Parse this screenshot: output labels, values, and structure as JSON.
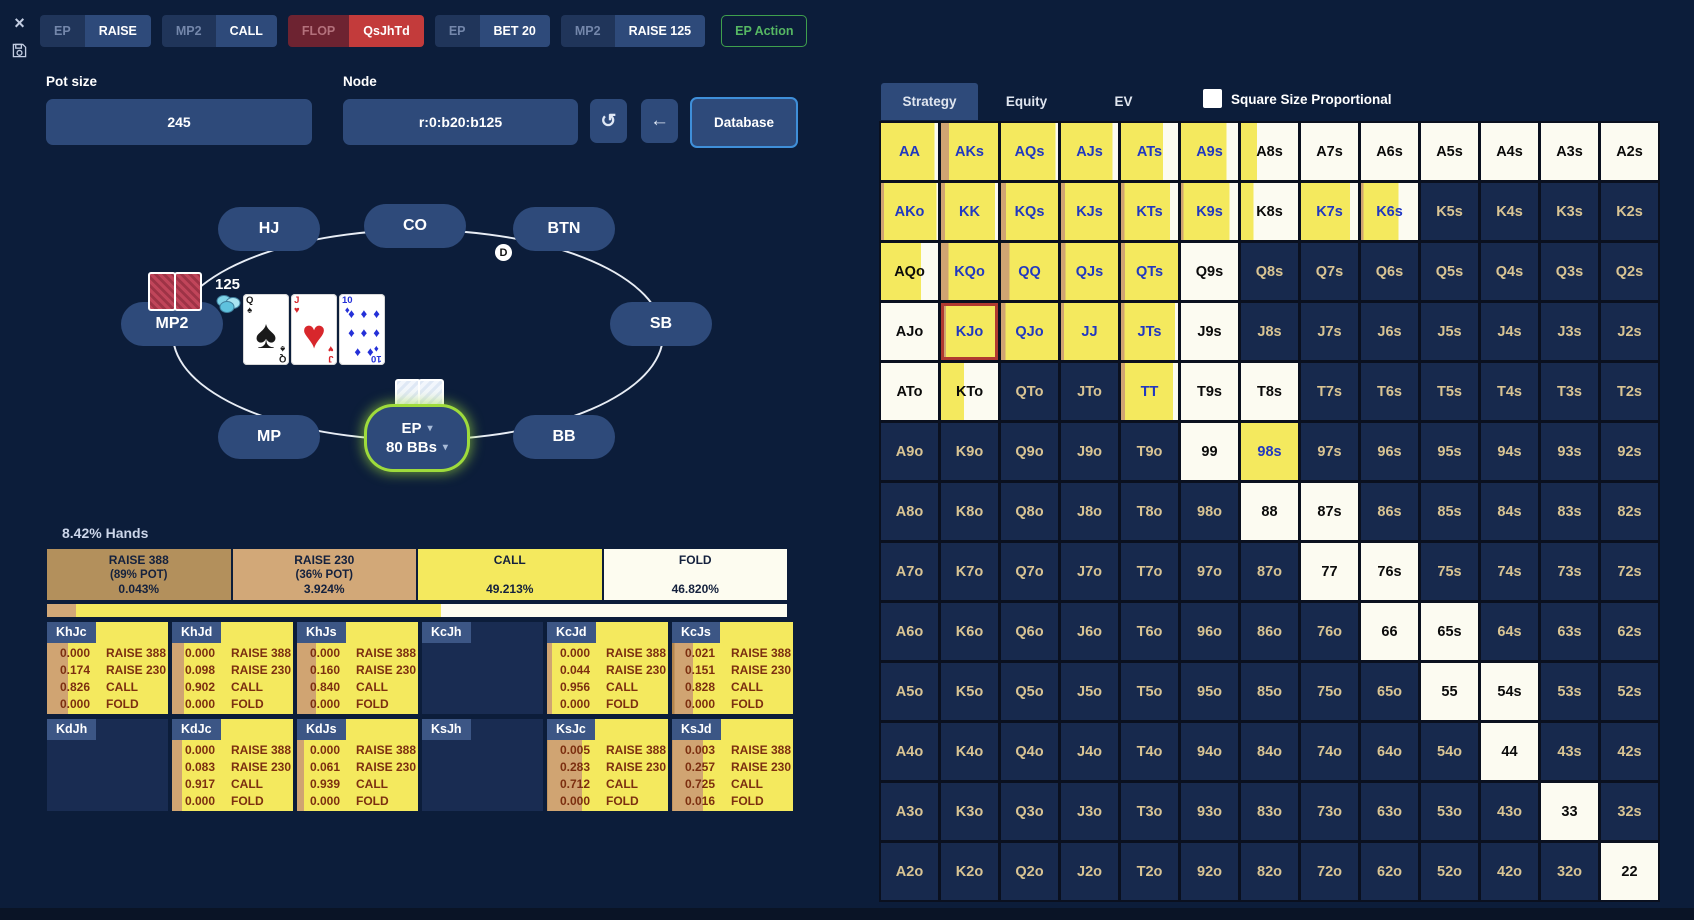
{
  "top_bar": {
    "groups": [
      {
        "position": "EP",
        "action": "RAISE",
        "board": false
      },
      {
        "position": "MP2",
        "action": "CALL",
        "board": false
      },
      {
        "position": "FLOP",
        "action": "QsJhTd",
        "board": true
      },
      {
        "position": "EP",
        "action": "BET 20",
        "board": false
      },
      {
        "position": "MP2",
        "action": "RAISE 125",
        "board": false
      }
    ],
    "ep_action_label": "EP Action"
  },
  "controls": {
    "pot_size_label": "Pot size",
    "pot_size_value": "245",
    "node_label": "Node",
    "node_value": "r:0:b20:b125",
    "database_label": "Database"
  },
  "table": {
    "seats": [
      "HJ",
      "CO",
      "BTN",
      "SB",
      "BB",
      "MP",
      "MP2"
    ],
    "hero": {
      "label": "EP",
      "stack": "80 BBs"
    },
    "bet_amount": "125",
    "dealer_label": "D",
    "board": [
      {
        "rank": "Q",
        "suit_glyph": "♠",
        "color": "#1a1a1a",
        "pips": 1
      },
      {
        "rank": "J",
        "suit_glyph": "♥",
        "color": "#d8272c",
        "pips": 1
      },
      {
        "rank": "10",
        "suit_glyph": "♦",
        "color": "#2430d8",
        "pips": 8
      }
    ]
  },
  "strategy_panel": {
    "hands_label": "8.42% Hands",
    "actions": [
      {
        "label": "RAISE 388",
        "pot": "(89% POT)",
        "pct": "0.043%",
        "freq": 0.043,
        "color": "#b3905c"
      },
      {
        "label": "RAISE 230",
        "pot": "(36% POT)",
        "pct": "3.924%",
        "freq": 3.924,
        "color": "#d2a878"
      },
      {
        "label": "CALL",
        "pot": "",
        "pct": "49.213%",
        "freq": 49.213,
        "color": "#f4e95e"
      },
      {
        "label": "FOLD",
        "pot": "",
        "pct": "46.820%",
        "freq": 46.82,
        "color": "#fdfcf0"
      }
    ],
    "combos": [
      {
        "name": "KhJc",
        "rows": [
          [
            "0.000",
            "RAISE 388"
          ],
          [
            "0.174",
            "RAISE 230"
          ],
          [
            "0.826",
            "CALL"
          ],
          [
            "0.000",
            "FOLD"
          ]
        ]
      },
      {
        "name": "KhJd",
        "rows": [
          [
            "0.000",
            "RAISE 388"
          ],
          [
            "0.098",
            "RAISE 230"
          ],
          [
            "0.902",
            "CALL"
          ],
          [
            "0.000",
            "FOLD"
          ]
        ]
      },
      {
        "name": "KhJs",
        "rows": [
          [
            "0.000",
            "RAISE 388"
          ],
          [
            "0.160",
            "RAISE 230"
          ],
          [
            "0.840",
            "CALL"
          ],
          [
            "0.000",
            "FOLD"
          ]
        ]
      },
      {
        "name": "KcJh",
        "rows": []
      },
      {
        "name": "KcJd",
        "rows": [
          [
            "0.000",
            "RAISE 388"
          ],
          [
            "0.044",
            "RAISE 230"
          ],
          [
            "0.956",
            "CALL"
          ],
          [
            "0.000",
            "FOLD"
          ]
        ]
      },
      {
        "name": "KcJs",
        "rows": [
          [
            "0.021",
            "RAISE 388"
          ],
          [
            "0.151",
            "RAISE 230"
          ],
          [
            "0.828",
            "CALL"
          ],
          [
            "0.000",
            "FOLD"
          ]
        ]
      },
      {
        "name": "KdJh",
        "rows": []
      },
      {
        "name": "KdJc",
        "rows": [
          [
            "0.000",
            "RAISE 388"
          ],
          [
            "0.083",
            "RAISE 230"
          ],
          [
            "0.917",
            "CALL"
          ],
          [
            "0.000",
            "FOLD"
          ]
        ]
      },
      {
        "name": "KdJs",
        "rows": [
          [
            "0.000",
            "RAISE 388"
          ],
          [
            "0.061",
            "RAISE 230"
          ],
          [
            "0.939",
            "CALL"
          ],
          [
            "0.000",
            "FOLD"
          ]
        ]
      },
      {
        "name": "KsJh",
        "rows": []
      },
      {
        "name": "KsJc",
        "rows": [
          [
            "0.005",
            "RAISE 388"
          ],
          [
            "0.283",
            "RAISE 230"
          ],
          [
            "0.712",
            "CALL"
          ],
          [
            "0.000",
            "FOLD"
          ]
        ]
      },
      {
        "name": "KsJd",
        "rows": [
          [
            "0.003",
            "RAISE 388"
          ],
          [
            "0.257",
            "RAISE 230"
          ],
          [
            "0.725",
            "CALL"
          ],
          [
            "0.016",
            "FOLD"
          ]
        ]
      }
    ]
  },
  "matrix": {
    "tabs": [
      "Strategy",
      "Equity",
      "EV"
    ],
    "active_tab": "Strategy",
    "checkbox_label": "Square Size Proportional",
    "colors": {
      "raise388": "#b2854d",
      "raise230": "#d0a472",
      "call": "#f4e95e",
      "fold": "#fcfbf1"
    },
    "selected_hand": "KJo",
    "cells": [
      [
        "AA",
        "s",
        "b",
        [
          0,
          0,
          0.94
        ]
      ],
      [
        "AKs",
        "s",
        "b",
        [
          0,
          0.14,
          0.86
        ]
      ],
      [
        "AQs",
        "s",
        "b",
        [
          0,
          0,
          0.96
        ]
      ],
      [
        "AJs",
        "s",
        "b",
        [
          0,
          0,
          0.9
        ]
      ],
      [
        "ATs",
        "s",
        "b",
        [
          0,
          0,
          0.74
        ]
      ],
      [
        "A9s",
        "s",
        "b",
        [
          0,
          0,
          0.8
        ]
      ],
      [
        "A8s",
        "s",
        "k",
        [
          0,
          0,
          0.28
        ]
      ],
      [
        "A7s",
        "f"
      ],
      [
        "A6s",
        "f"
      ],
      [
        "A5s",
        "f"
      ],
      [
        "A4s",
        "f"
      ],
      [
        "A3s",
        "f"
      ],
      [
        "A2s",
        "f"
      ],
      [
        "AKo",
        "s",
        "b",
        [
          0,
          0.05,
          0.92
        ]
      ],
      [
        "KK",
        "s",
        "b",
        [
          0,
          0.07,
          0.88
        ]
      ],
      [
        "KQs",
        "s",
        "b",
        [
          0,
          0.09,
          0.91
        ]
      ],
      [
        "KJs",
        "s",
        "b",
        [
          0,
          0.07,
          0.93
        ]
      ],
      [
        "KTs",
        "s",
        "b",
        [
          0,
          0.06,
          0.8
        ]
      ],
      [
        "K9s",
        "s",
        "b",
        [
          0,
          0.04,
          0.81
        ]
      ],
      [
        "K8s",
        "s",
        "k",
        [
          0,
          0,
          0.22
        ]
      ],
      [
        "K7s",
        "s",
        "b",
        [
          0,
          0,
          0.86
        ]
      ],
      [
        "K6s",
        "s",
        "b",
        [
          0,
          0.04,
          0.62
        ]
      ],
      [
        "K5s",
        "n"
      ],
      [
        "K4s",
        "n"
      ],
      [
        "K3s",
        "n"
      ],
      [
        "K2s",
        "n"
      ],
      [
        "AQo",
        "s",
        "k",
        [
          0,
          0,
          0.7
        ]
      ],
      [
        "KQo",
        "s",
        "b",
        [
          0,
          0.13,
          0.87
        ]
      ],
      [
        "QQ",
        "s",
        "b",
        [
          0,
          0.15,
          0.85
        ]
      ],
      [
        "QJs",
        "s",
        "b",
        [
          0,
          0.08,
          0.92
        ]
      ],
      [
        "QTs",
        "s",
        "b",
        [
          0,
          0.07,
          0.93
        ]
      ],
      [
        "Q9s",
        "f"
      ],
      [
        "Q8s",
        "n"
      ],
      [
        "Q7s",
        "n"
      ],
      [
        "Q6s",
        "n"
      ],
      [
        "Q5s",
        "n"
      ],
      [
        "Q4s",
        "n"
      ],
      [
        "Q3s",
        "n"
      ],
      [
        "Q2s",
        "n"
      ],
      [
        "AJo",
        "f"
      ],
      [
        "KJo",
        "s",
        "b",
        [
          0,
          0.09,
          0.91
        ],
        1
      ],
      [
        "QJo",
        "s",
        "b",
        [
          0,
          0.08,
          0.92
        ]
      ],
      [
        "JJ",
        "s",
        "b",
        [
          0,
          0.05,
          0.95
        ]
      ],
      [
        "JTs",
        "s",
        "b",
        [
          0,
          0.06,
          0.89
        ]
      ],
      [
        "J9s",
        "f"
      ],
      [
        "J8s",
        "n"
      ],
      [
        "J7s",
        "n"
      ],
      [
        "J6s",
        "n"
      ],
      [
        "J5s",
        "n"
      ],
      [
        "J4s",
        "n"
      ],
      [
        "J3s",
        "n"
      ],
      [
        "J2s",
        "n"
      ],
      [
        "ATo",
        "f"
      ],
      [
        "KTo",
        "s",
        "k",
        [
          0,
          0,
          0.4
        ]
      ],
      [
        "QTo",
        "n"
      ],
      [
        "JTo",
        "n"
      ],
      [
        "TT",
        "s",
        "b",
        [
          0,
          0.07,
          0.84
        ]
      ],
      [
        "T9s",
        "f"
      ],
      [
        "T8s",
        "f"
      ],
      [
        "T7s",
        "n"
      ],
      [
        "T6s",
        "n"
      ],
      [
        "T5s",
        "n"
      ],
      [
        "T4s",
        "n"
      ],
      [
        "T3s",
        "n"
      ],
      [
        "T2s",
        "n"
      ],
      [
        "A9o",
        "n"
      ],
      [
        "K9o",
        "n"
      ],
      [
        "Q9o",
        "n"
      ],
      [
        "J9o",
        "n"
      ],
      [
        "T9o",
        "n"
      ],
      [
        "99",
        "f"
      ],
      [
        "98s",
        "s",
        "b",
        [
          0,
          0,
          1
        ]
      ],
      [
        "97s",
        "n"
      ],
      [
        "96s",
        "n"
      ],
      [
        "95s",
        "n"
      ],
      [
        "94s",
        "n"
      ],
      [
        "93s",
        "n"
      ],
      [
        "92s",
        "n"
      ],
      [
        "A8o",
        "n"
      ],
      [
        "K8o",
        "n"
      ],
      [
        "Q8o",
        "n"
      ],
      [
        "J8o",
        "n"
      ],
      [
        "T8o",
        "n"
      ],
      [
        "98o",
        "n"
      ],
      [
        "88",
        "f"
      ],
      [
        "87s",
        "f"
      ],
      [
        "86s",
        "n"
      ],
      [
        "85s",
        "n"
      ],
      [
        "84s",
        "n"
      ],
      [
        "83s",
        "n"
      ],
      [
        "82s",
        "n"
      ],
      [
        "A7o",
        "n"
      ],
      [
        "K7o",
        "n"
      ],
      [
        "Q7o",
        "n"
      ],
      [
        "J7o",
        "n"
      ],
      [
        "T7o",
        "n"
      ],
      [
        "97o",
        "n"
      ],
      [
        "87o",
        "n"
      ],
      [
        "77",
        "f"
      ],
      [
        "76s",
        "f"
      ],
      [
        "75s",
        "n"
      ],
      [
        "74s",
        "n"
      ],
      [
        "73s",
        "n"
      ],
      [
        "72s",
        "n"
      ],
      [
        "A6o",
        "n"
      ],
      [
        "K6o",
        "n"
      ],
      [
        "Q6o",
        "n"
      ],
      [
        "J6o",
        "n"
      ],
      [
        "T6o",
        "n"
      ],
      [
        "96o",
        "n"
      ],
      [
        "86o",
        "n"
      ],
      [
        "76o",
        "n"
      ],
      [
        "66",
        "f"
      ],
      [
        "65s",
        "f"
      ],
      [
        "64s",
        "n"
      ],
      [
        "63s",
        "n"
      ],
      [
        "62s",
        "n"
      ],
      [
        "A5o",
        "n"
      ],
      [
        "K5o",
        "n"
      ],
      [
        "Q5o",
        "n"
      ],
      [
        "J5o",
        "n"
      ],
      [
        "T5o",
        "n"
      ],
      [
        "95o",
        "n"
      ],
      [
        "85o",
        "n"
      ],
      [
        "75o",
        "n"
      ],
      [
        "65o",
        "n"
      ],
      [
        "55",
        "f"
      ],
      [
        "54s",
        "f"
      ],
      [
        "53s",
        "n"
      ],
      [
        "52s",
        "n"
      ],
      [
        "A4o",
        "n"
      ],
      [
        "K4o",
        "n"
      ],
      [
        "Q4o",
        "n"
      ],
      [
        "J4o",
        "n"
      ],
      [
        "T4o",
        "n"
      ],
      [
        "94o",
        "n"
      ],
      [
        "84o",
        "n"
      ],
      [
        "74o",
        "n"
      ],
      [
        "64o",
        "n"
      ],
      [
        "54o",
        "n"
      ],
      [
        "44",
        "f"
      ],
      [
        "43s",
        "n"
      ],
      [
        "42s",
        "n"
      ],
      [
        "A3o",
        "n"
      ],
      [
        "K3o",
        "n"
      ],
      [
        "Q3o",
        "n"
      ],
      [
        "J3o",
        "n"
      ],
      [
        "T3o",
        "n"
      ],
      [
        "93o",
        "n"
      ],
      [
        "83o",
        "n"
      ],
      [
        "73o",
        "n"
      ],
      [
        "63o",
        "n"
      ],
      [
        "53o",
        "n"
      ],
      [
        "43o",
        "n"
      ],
      [
        "33",
        "f"
      ],
      [
        "32s",
        "n"
      ],
      [
        "A2o",
        "n"
      ],
      [
        "K2o",
        "n"
      ],
      [
        "Q2o",
        "n"
      ],
      [
        "J2o",
        "n"
      ],
      [
        "T2o",
        "n"
      ],
      [
        "92o",
        "n"
      ],
      [
        "82o",
        "n"
      ],
      [
        "72o",
        "n"
      ],
      [
        "62o",
        "n"
      ],
      [
        "52o",
        "n"
      ],
      [
        "42o",
        "n"
      ],
      [
        "32o",
        "n"
      ],
      [
        "22",
        "f"
      ]
    ]
  }
}
